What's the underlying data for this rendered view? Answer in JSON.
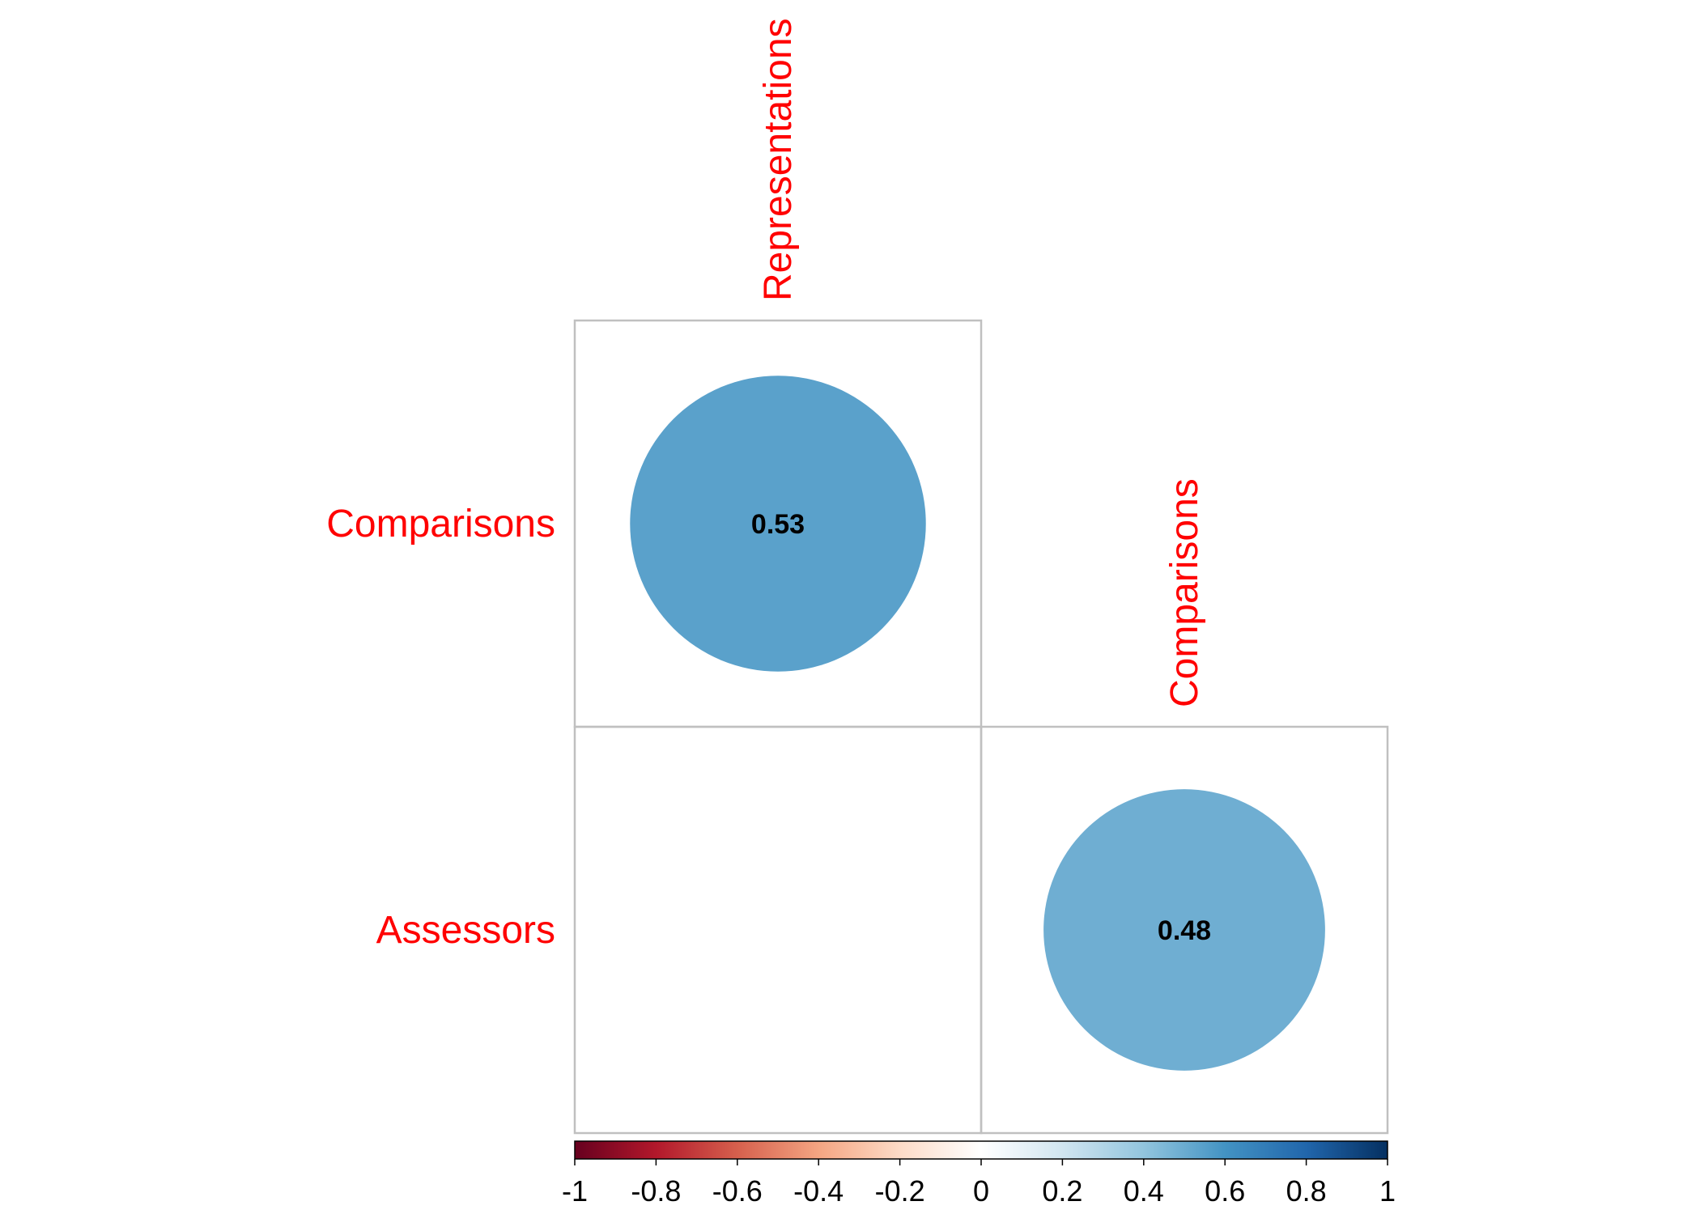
{
  "chart_data": {
    "type": "heatmap",
    "subtype": "correlation-matrix-upper-triangle-circles",
    "column_labels": [
      "Representations",
      "Comparisons"
    ],
    "row_labels": [
      "Comparisons",
      "Assessors"
    ],
    "cells": [
      {
        "row": "Comparisons",
        "col": "Representations",
        "value": 0.53,
        "label": "0.53"
      },
      {
        "row": "Assessors",
        "col": "Representations",
        "value": null,
        "label": ""
      },
      {
        "row": "Assessors",
        "col": "Comparisons",
        "value": 0.48,
        "label": "0.48"
      }
    ],
    "colorbar": {
      "range": [
        -1,
        1
      ],
      "ticks": [
        "-1",
        "-0.8",
        "-0.6",
        "-0.4",
        "-0.2",
        "0",
        "0.2",
        "0.4",
        "0.6",
        "0.8",
        "1"
      ],
      "placement": "bottom",
      "colors": [
        "#67001f",
        "#b2182b",
        "#d6604d",
        "#f4a582",
        "#fddbc7",
        "#ffffff",
        "#d1e5f0",
        "#92c5de",
        "#4393c3",
        "#2166ac",
        "#053061"
      ]
    },
    "label_color": "#ff0000",
    "circle_colors": {
      "0.53": "#5aa1cb",
      "0.48": "#6faed2"
    },
    "grid": true
  }
}
